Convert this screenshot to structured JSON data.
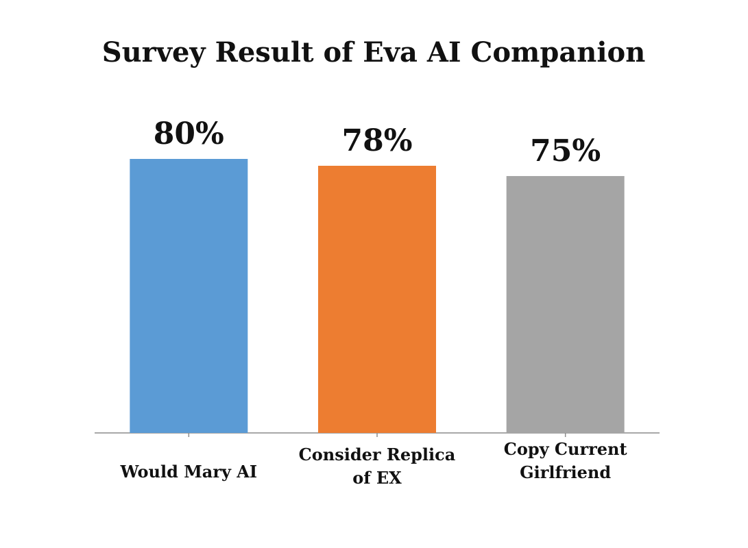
{
  "chart_data": {
    "type": "bar",
    "title": "Survey Result of Eva AI Companion",
    "categories": [
      [
        "Would Mary AI"
      ],
      [
        "Consider Replica",
        "of EX"
      ],
      [
        "Copy Current",
        "Girlfriend"
      ]
    ],
    "values": [
      80,
      78,
      75
    ],
    "data_labels": [
      "80%",
      "78%",
      "75%"
    ],
    "bar_colors": [
      "#5B9BD5",
      "#ED7D31",
      "#A5A5A5"
    ],
    "ylim": [
      0,
      100
    ],
    "grid": false,
    "legend": "none"
  }
}
